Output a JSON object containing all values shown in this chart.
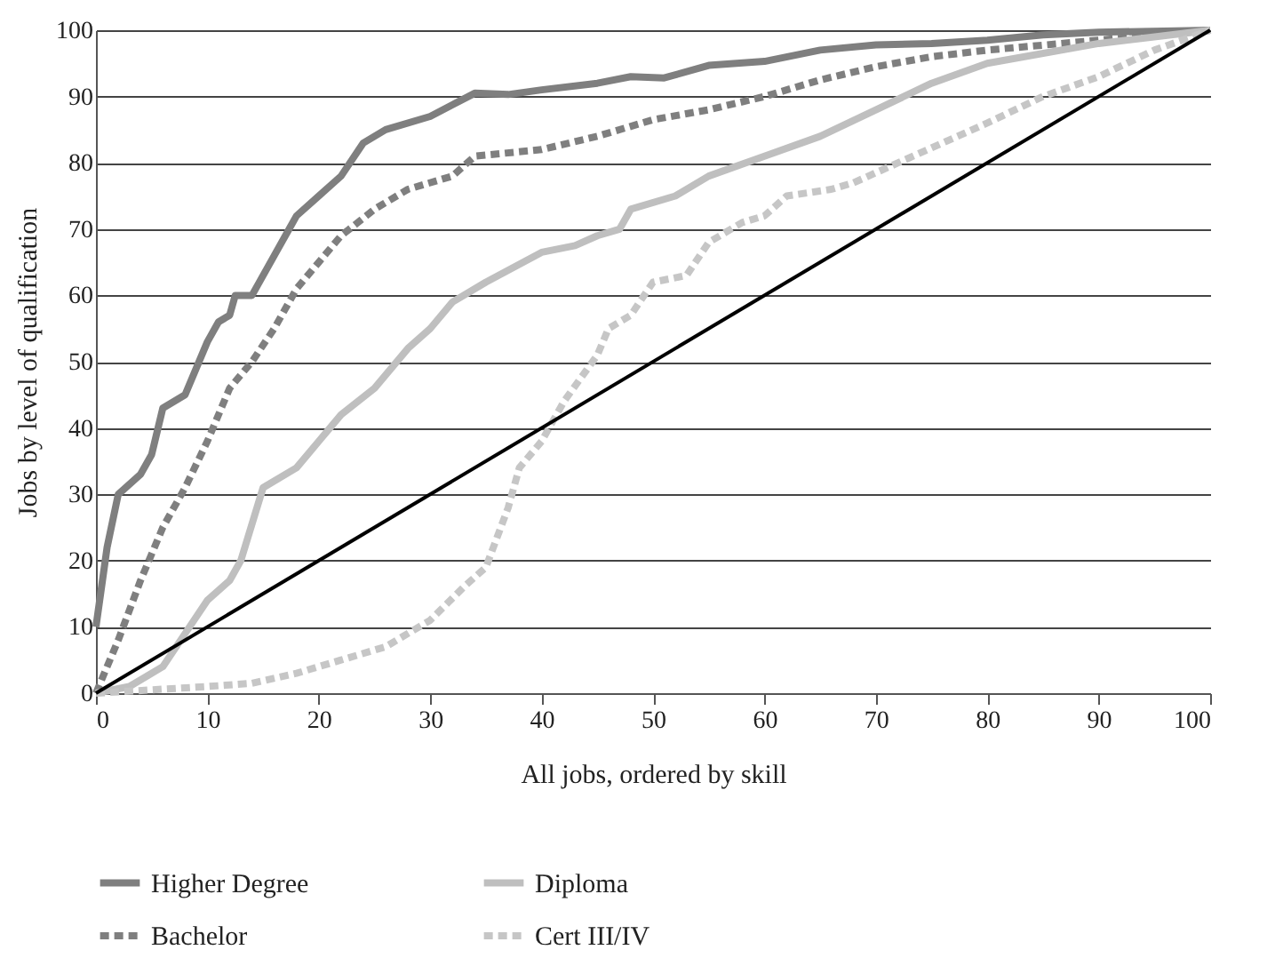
{
  "chart_data": {
    "type": "line",
    "xlabel": "All jobs, ordered by skill",
    "ylabel": "Jobs by level of qualification",
    "xlim": [
      0,
      100
    ],
    "ylim": [
      0,
      100
    ],
    "xticks": [
      0,
      10,
      20,
      30,
      40,
      50,
      60,
      70,
      80,
      90,
      100
    ],
    "yticks": [
      0,
      10,
      20,
      30,
      40,
      50,
      60,
      70,
      80,
      90,
      100
    ],
    "grid": "y",
    "legend": "bottom",
    "marker": "none",
    "series": [
      {
        "name": "Higher Degree",
        "color": "#7f7f7f",
        "line_style": "solid",
        "x": [
          0,
          1,
          2,
          4,
          5,
          6,
          8,
          10,
          11,
          12,
          12.5,
          14,
          16,
          18,
          20,
          22,
          24,
          26,
          30,
          34,
          37,
          40,
          45,
          48,
          51,
          55,
          60,
          65,
          70,
          75,
          80,
          85,
          90,
          100
        ],
        "values": [
          10,
          22,
          30,
          33,
          36,
          43,
          45,
          53,
          56,
          57,
          60,
          60,
          66,
          72,
          75,
          78,
          83,
          85,
          87,
          90.5,
          90.3,
          91,
          92,
          93,
          92.8,
          94.7,
          95.3,
          97,
          97.8,
          98,
          98.5,
          99.3,
          99.7,
          100
        ]
      },
      {
        "name": "Bachelor",
        "color": "#7f7f7f",
        "line_style": "dashed",
        "x": [
          0,
          2,
          4,
          6,
          8,
          10,
          12,
          14,
          16,
          18,
          20,
          22,
          25,
          28,
          32,
          34,
          40,
          45,
          50,
          55,
          60,
          65,
          70,
          75,
          80,
          90,
          100
        ],
        "values": [
          0,
          8,
          17,
          25,
          31,
          38,
          46,
          50,
          55,
          61,
          65,
          69,
          73,
          76,
          78,
          81,
          82,
          84,
          86.5,
          88,
          90,
          92.5,
          94.5,
          96,
          97,
          98.5,
          100
        ]
      },
      {
        "name": "Diploma",
        "color": "#bfbfbf",
        "line_style": "solid",
        "x": [
          0,
          3,
          6,
          8,
          10,
          12,
          13,
          15,
          18,
          20,
          22,
          25,
          28,
          30,
          32,
          35,
          40,
          43,
          45,
          47,
          48,
          52,
          55,
          60,
          65,
          70,
          75,
          80,
          90,
          100
        ],
        "values": [
          0,
          1,
          4,
          9,
          14,
          17,
          20,
          31,
          34,
          38,
          42,
          46,
          52,
          55,
          59,
          62,
          66.5,
          67.5,
          69,
          70,
          73,
          75,
          78,
          81,
          84,
          88,
          92,
          95,
          98,
          100
        ]
      },
      {
        "name": "Cert III/IV",
        "color": "#c6c6c6",
        "line_style": "dashed",
        "x": [
          0,
          5,
          10,
          14,
          18,
          22,
          26,
          30,
          33,
          35,
          37,
          38,
          40,
          42,
          45,
          46,
          48,
          50,
          53,
          55,
          58,
          60,
          62,
          66,
          68,
          72,
          76,
          80,
          85,
          90,
          95,
          100
        ],
        "values": [
          0,
          0.5,
          1,
          1.5,
          3,
          5,
          7,
          11,
          16,
          19,
          28,
          34,
          38,
          44,
          51,
          55,
          57,
          62,
          63,
          68,
          71,
          72,
          75,
          76,
          77,
          80,
          83,
          86,
          90,
          93,
          97,
          100
        ]
      },
      {
        "color": "#000000",
        "line_style": "solid",
        "x": [
          0,
          100
        ],
        "values": [
          0,
          100
        ]
      }
    ]
  }
}
